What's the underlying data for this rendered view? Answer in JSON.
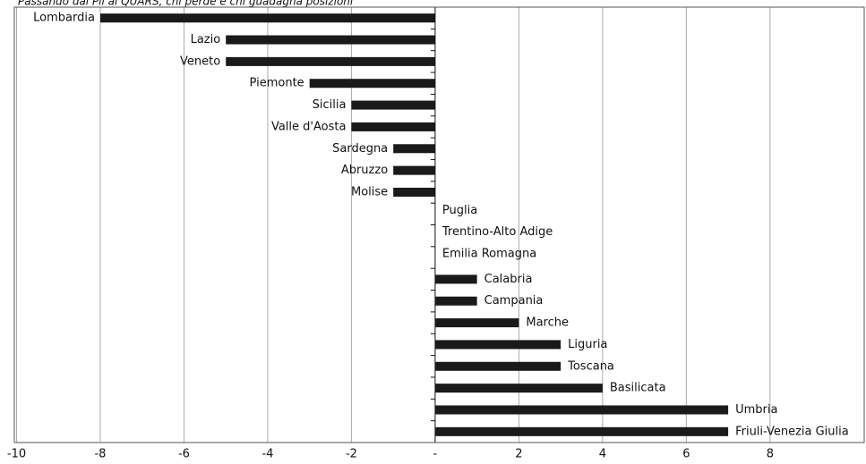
{
  "chart_data": {
    "type": "barh",
    "title": "Passando dal Pil al QUARS, chi perde e chi guadagna posizioni",
    "categories": [
      "Lombardia",
      "Lazio",
      "Veneto",
      "Piemonte",
      "Sicilia",
      "Valle d'Aosta",
      "Sardegna",
      "Abruzzo",
      "Molise",
      "Puglia",
      "Trentino-Alto Adige",
      "Emilia Romagna",
      "Calabria",
      "Campania",
      "Marche",
      "Liguria",
      "Toscana",
      "Basilicata",
      "Umbria",
      "Friuli-Venezia Giulia"
    ],
    "values": [
      -8,
      -5,
      -5,
      -3,
      -2,
      -2,
      -1,
      -1,
      -1,
      0,
      0,
      0,
      1,
      1,
      2,
      3,
      3,
      4,
      7,
      7
    ],
    "color": "#1a1a1a",
    "xlim": [
      -10,
      10.25
    ],
    "xticks": [
      -10,
      -8,
      -6,
      -4,
      -2,
      {
        "value": 0,
        "label": "-"
      },
      2,
      4,
      6,
      8
    ],
    "grid": true
  }
}
